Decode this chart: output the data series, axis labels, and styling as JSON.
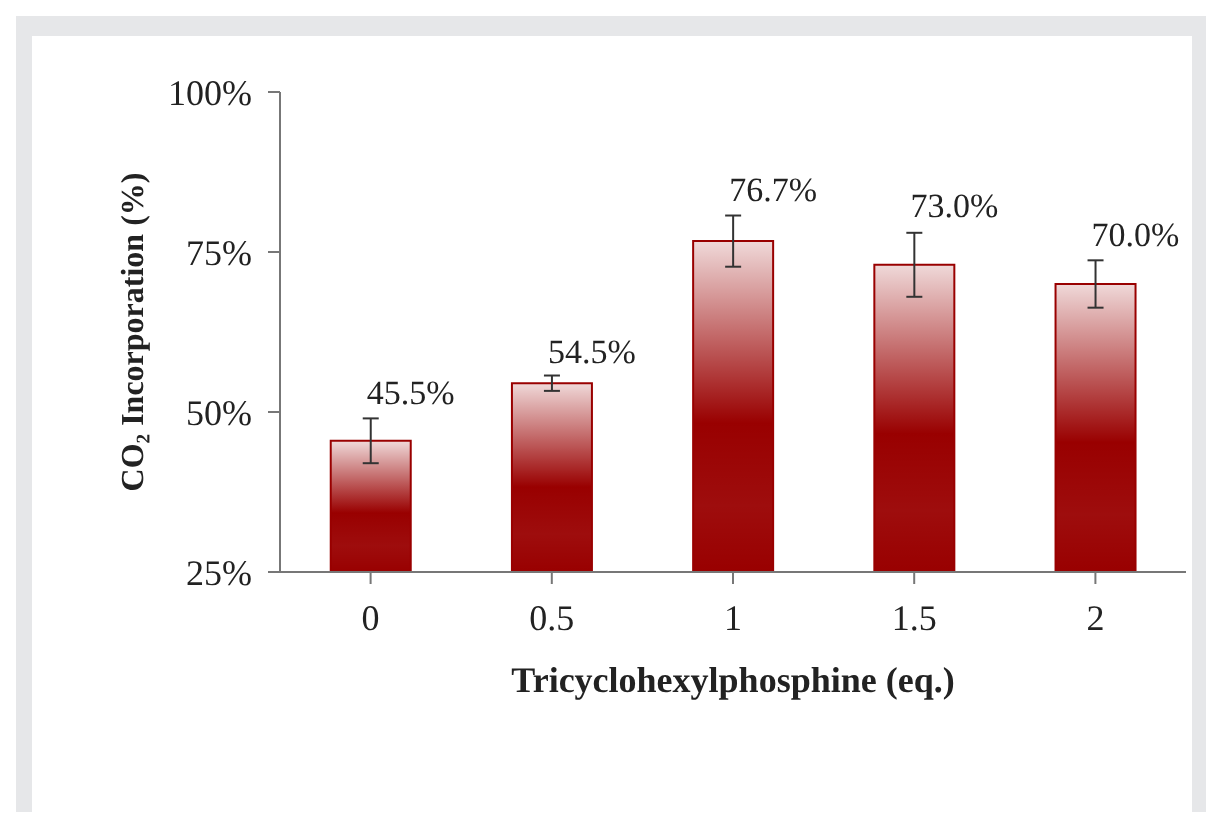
{
  "chart_data": {
    "type": "bar",
    "xlabel": "Tricyclohexylphosphine (eq.)",
    "ylabel": "CO₂ Incorporation (%)",
    "categories": [
      "0",
      "0.5",
      "1",
      "1.5",
      "2"
    ],
    "values": [
      45.5,
      54.5,
      76.7,
      73.0,
      70.0
    ],
    "errors": [
      3.5,
      1.2,
      4,
      5,
      3.7
    ],
    "value_labels": [
      "45.5%",
      "54.5%",
      "76.7%",
      "73.0%",
      "70.0%"
    ],
    "color": "#990000",
    "ylim": [
      25,
      100
    ],
    "yticks": [
      {
        "value": 25,
        "label": "25%"
      },
      {
        "value": 50,
        "label": "50%"
      },
      {
        "value": 75,
        "label": "75%"
      },
      {
        "value": 100,
        "label": "100%"
      }
    ],
    "grid": false,
    "legend": false
  }
}
